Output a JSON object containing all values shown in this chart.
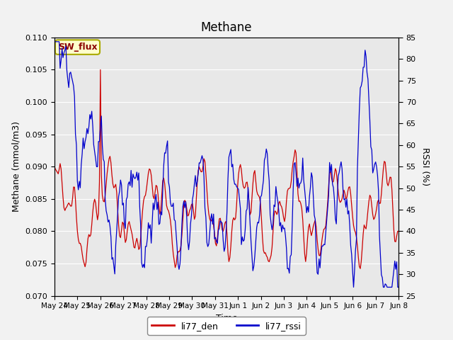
{
  "title": "Methane",
  "xlabel": "Time",
  "ylabel_left": "Methane (mmol/m3)",
  "ylabel_right": "RSSI (%)",
  "legend_label1": "li77_den",
  "legend_label2": "li77_rssi",
  "annotation_text": "SW_flux",
  "left_ylim": [
    0.07,
    0.11
  ],
  "right_ylim": [
    25,
    85
  ],
  "left_yticks": [
    0.07,
    0.075,
    0.08,
    0.085,
    0.09,
    0.095,
    0.1,
    0.105,
    0.11
  ],
  "right_yticks": [
    25,
    30,
    35,
    40,
    45,
    50,
    55,
    60,
    65,
    70,
    75,
    80,
    85
  ],
  "xtick_labels": [
    "May 24",
    "May 25",
    "May 26",
    "May 27",
    "May 28",
    "May 29",
    "May 30",
    "May 31",
    "Jun 1",
    "Jun 2",
    "Jun 3",
    "Jun 4",
    "Jun 5",
    "Jun 6",
    "Jun 7",
    "Jun 8"
  ],
  "color_red": "#cc0000",
  "color_blue": "#0000cc",
  "background_color": "#e8e8e8",
  "fig_background": "#f2f2f2"
}
